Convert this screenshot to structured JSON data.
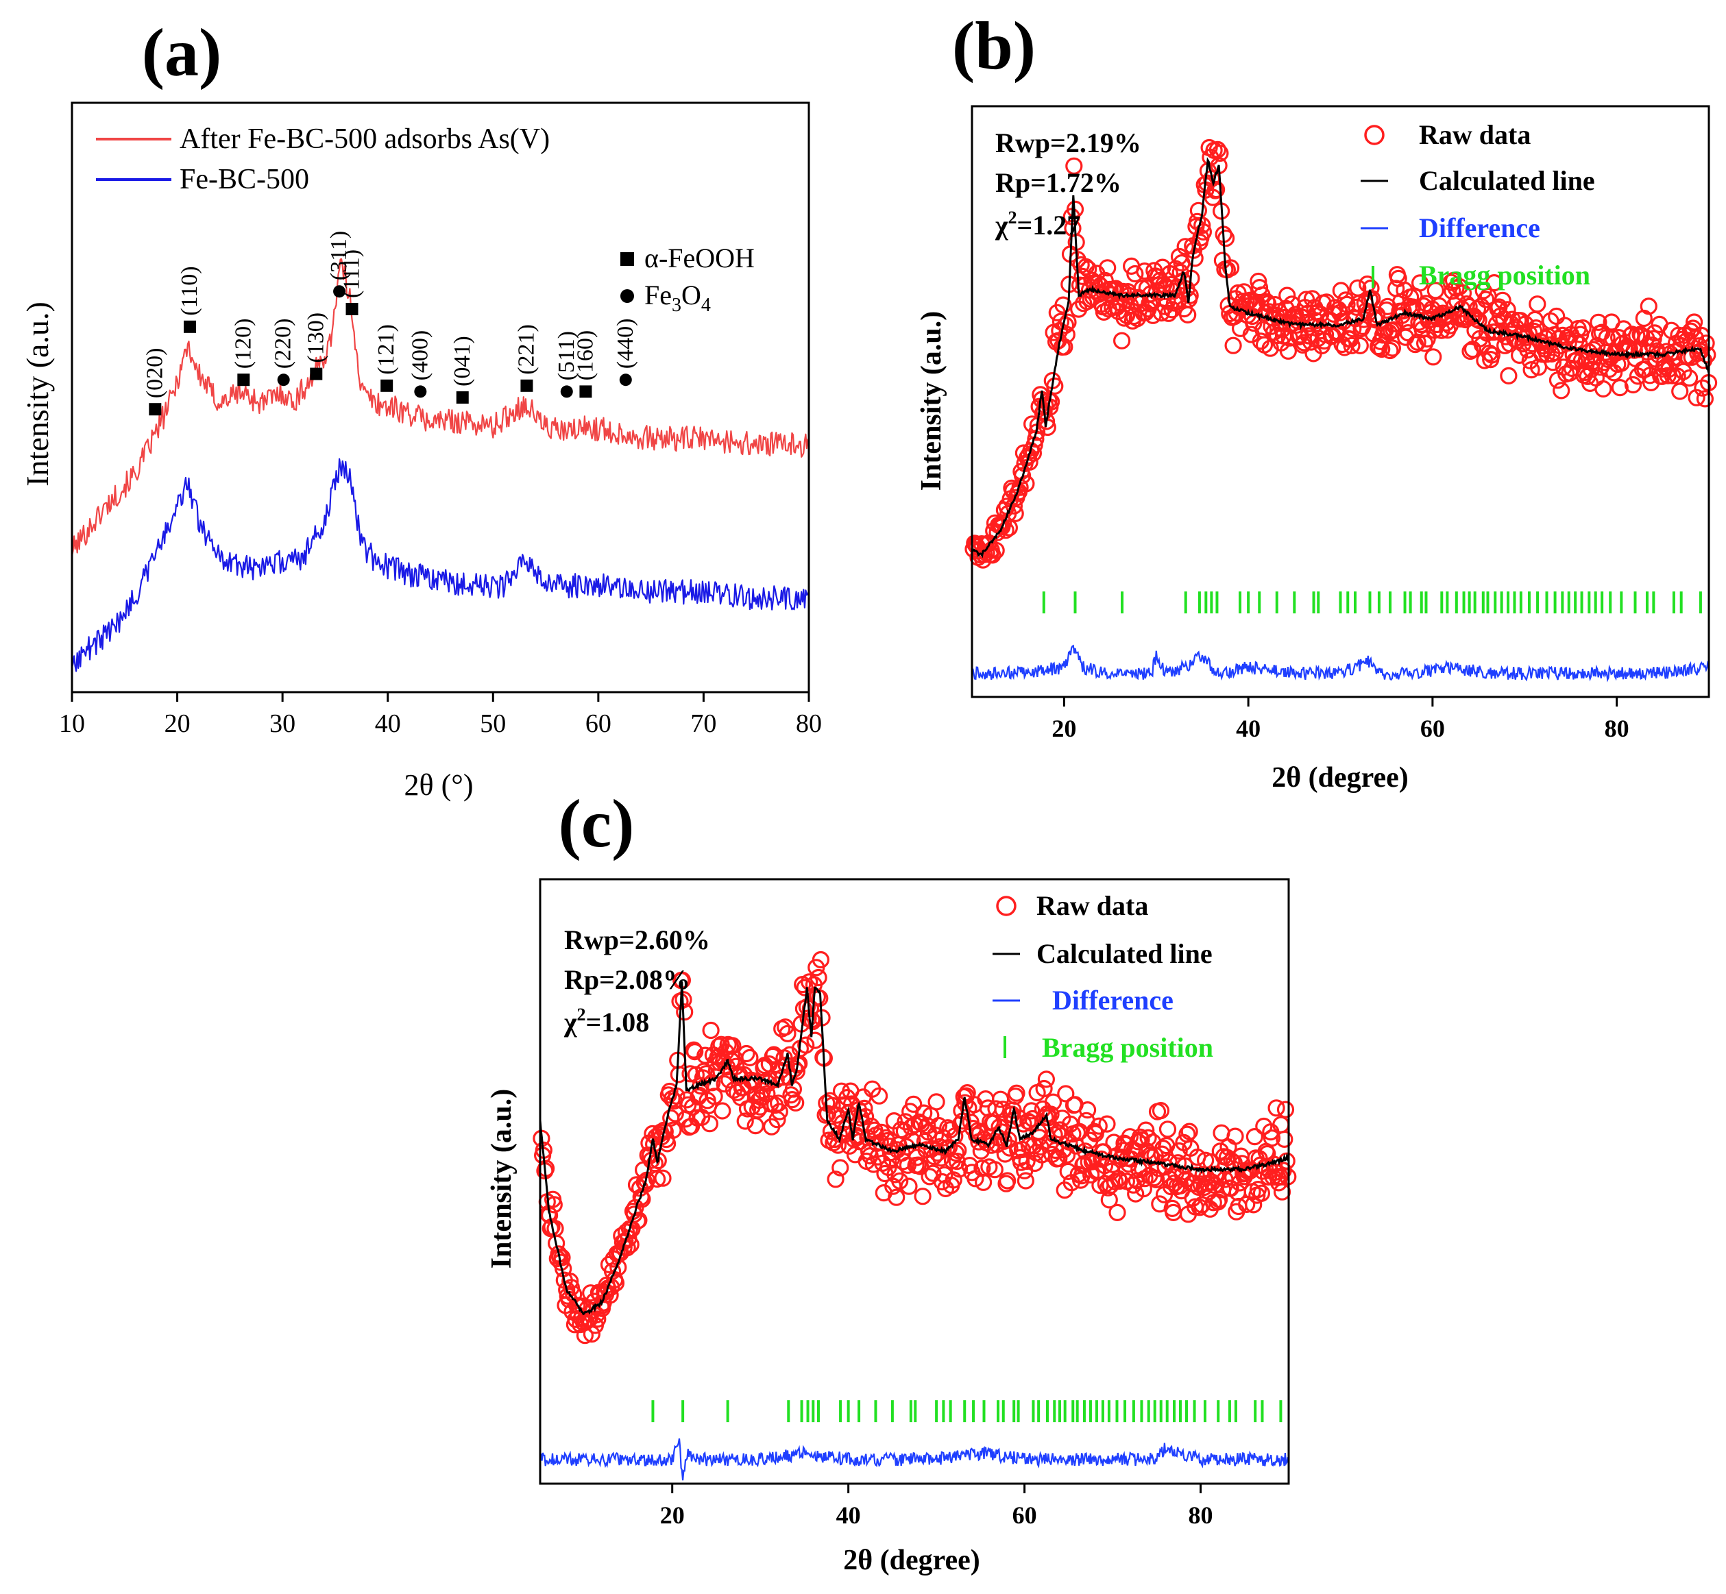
{
  "figure": {
    "panels": [
      {
        "label": "(a)"
      },
      {
        "label": "(b)"
      },
      {
        "label": "(c)"
      }
    ]
  },
  "chart_data": [
    {
      "panel": "(a)",
      "type": "line",
      "title": "",
      "xlabel": "2θ (°)",
      "ylabel": "Intensity (a.u.)",
      "xlim": [
        10,
        80
      ],
      "ylim": [
        0,
        100
      ],
      "xticks": [
        10,
        20,
        30,
        40,
        50,
        60,
        70,
        80
      ],
      "yticks_visible": false,
      "legend_position": "top-left",
      "series": [
        {
          "name": "After Fe-BC-500 adsorbs As(V)",
          "color": "#f04545",
          "x": [
            10,
            13,
            16,
            18,
            19.5,
            20.5,
            21,
            22,
            24,
            26,
            28,
            30,
            31,
            33,
            34.5,
            35.5,
            36.5,
            37.5,
            39,
            41,
            44,
            47,
            50,
            53,
            55,
            57,
            59,
            62,
            65,
            70,
            75,
            80
          ],
          "y": [
            24,
            31,
            37,
            44,
            50,
            56,
            59,
            54,
            49,
            51,
            49,
            51,
            49,
            54,
            59,
            73,
            66,
            51,
            49,
            48,
            46,
            46,
            45,
            49,
            45,
            44,
            45,
            44,
            43,
            43,
            42,
            42
          ]
        },
        {
          "name": "Fe-BC-500",
          "color": "#1a1ae6",
          "x": [
            10,
            12,
            14,
            16,
            18,
            19.5,
            20.5,
            21,
            22,
            24,
            27,
            30,
            32,
            34,
            35.5,
            36.5,
            37.5,
            39,
            42,
            45,
            48,
            51,
            53,
            55,
            57,
            59,
            62,
            65,
            70,
            75,
            80
          ],
          "y": [
            5,
            8,
            11,
            16,
            24,
            29,
            34,
            36,
            29,
            23,
            21,
            22,
            23,
            29,
            39,
            36,
            25,
            22,
            20,
            19,
            18,
            18,
            23,
            18,
            18,
            18,
            18,
            17,
            17,
            16,
            16
          ]
        }
      ],
      "legend_series": [
        "After Fe-BC-500 adsorbs As(V)",
        "Fe-BC-500"
      ],
      "phase_legend": [
        {
          "symbol": "square",
          "label": "α-FeOOH"
        },
        {
          "symbol": "circle",
          "label": "Fe3O4",
          "base": "Fe",
          "sub1": "3",
          "mid": "O",
          "sub2": "4"
        }
      ],
      "annotations": [
        {
          "x": 17.9,
          "y": 48,
          "symbol": "square",
          "hkl": "(020)"
        },
        {
          "x": 21.2,
          "y": 62,
          "symbol": "square",
          "hkl": "(110)"
        },
        {
          "x": 26.3,
          "y": 53,
          "symbol": "square",
          "hkl": "(120)"
        },
        {
          "x": 30.1,
          "y": 53,
          "symbol": "circle",
          "hkl": "(220)"
        },
        {
          "x": 33.2,
          "y": 54,
          "symbol": "square",
          "hkl": "(130)"
        },
        {
          "x": 35.4,
          "y": 68,
          "symbol": "circle",
          "hkl": "(311)"
        },
        {
          "x": 36.6,
          "y": 65,
          "symbol": "square",
          "hkl": "(111)"
        },
        {
          "x": 39.9,
          "y": 52,
          "symbol": "square",
          "hkl": "(121)"
        },
        {
          "x": 43.1,
          "y": 51,
          "symbol": "circle",
          "hkl": "(400)"
        },
        {
          "x": 47.1,
          "y": 50,
          "symbol": "square",
          "hkl": "(041)"
        },
        {
          "x": 53.2,
          "y": 52,
          "symbol": "square",
          "hkl": "(221)"
        },
        {
          "x": 57.0,
          "y": 51,
          "symbol": "circle",
          "hkl": "(511)"
        },
        {
          "x": 58.8,
          "y": 51,
          "symbol": "square",
          "hkl": "(160)"
        },
        {
          "x": 62.6,
          "y": 53,
          "symbol": "circle",
          "hkl": "(440)"
        }
      ]
    },
    {
      "panel": "(b)",
      "type": "scatter",
      "title": "",
      "xlabel": "2θ (degree)",
      "ylabel": "Intensity (a.u.)",
      "xlim": [
        10,
        90
      ],
      "ylim": [
        0,
        100
      ],
      "xticks": [
        20,
        40,
        60,
        80
      ],
      "yticks_visible": false,
      "legend_position": "top-right",
      "stats": [
        {
          "name": "Rwp",
          "text": "Rwp=2.19%"
        },
        {
          "name": "Rp",
          "text": "Rp=1.72%"
        },
        {
          "name": "chi2",
          "text": "χ2=1.27",
          "base": "χ",
          "sup": "2",
          "rest": "=1.27"
        }
      ],
      "legend": [
        {
          "label": "Raw data",
          "marker": "open-circle",
          "color": "#ff1f1f",
          "text_color": "#000000"
        },
        {
          "label": "Calculated line",
          "marker": "line",
          "color": "#000000",
          "text_color": "#000000"
        },
        {
          "label": "Difference",
          "marker": "line",
          "color": "#1f3fff",
          "text_color": "#1f3fff"
        },
        {
          "label": "Bragg position",
          "marker": "tick",
          "color": "#22e022",
          "text_color": "#22e022"
        }
      ],
      "calculated_line": {
        "x": [
          10,
          11,
          13,
          15,
          17,
          17.6,
          18,
          19.5,
          20.5,
          21,
          21.6,
          23,
          26,
          29,
          32,
          33,
          33.5,
          34,
          35,
          35.6,
          36.2,
          36.8,
          37.5,
          38,
          40,
          45,
          50,
          52.5,
          53.2,
          54,
          57,
          60,
          63,
          66,
          70,
          75,
          80,
          85,
          89,
          90
        ],
        "y": [
          25,
          24,
          28,
          35,
          45,
          52,
          46,
          60,
          67,
          85,
          68,
          69,
          68,
          68,
          68,
          72,
          67,
          75,
          82,
          91,
          87,
          90,
          73,
          66,
          65,
          63,
          63,
          64,
          69,
          63,
          65,
          64,
          66,
          62,
          61,
          59,
          58,
          58,
          59,
          55
        ]
      },
      "raw_data_scatter_band": 6,
      "bragg_positions": [
        17.8,
        21.2,
        26.3,
        33.2,
        34.7,
        35.4,
        36.0,
        36.6,
        39.1,
        40.0,
        41.2,
        43.1,
        45.0,
        47.1,
        47.6,
        50.0,
        50.8,
        51.6,
        53.2,
        54.2,
        55.4,
        57.0,
        57.6,
        58.8,
        59.3,
        61.0,
        61.6,
        62.6,
        63.4,
        64.0,
        64.6,
        65.5,
        66.0,
        66.8,
        67.5,
        68.2,
        68.9,
        69.6,
        70.5,
        71.4,
        72.4,
        73.3,
        74.1,
        74.8,
        75.5,
        76.2,
        77.0,
        77.7,
        78.4,
        79.3,
        80.5,
        82.0,
        83.3,
        84.0,
        86.2,
        87.0,
        89.1
      ],
      "bragg_level": 16,
      "difference": {
        "x": [
          10,
          15,
          20,
          21,
          22,
          25,
          29.5,
          30,
          31,
          33,
          35,
          36,
          37,
          40,
          45,
          50,
          53,
          54,
          58,
          62,
          66,
          70,
          75,
          80,
          85,
          90
        ],
        "y": [
          4,
          4,
          5,
          8,
          5,
          4,
          4,
          7,
          4,
          5,
          7,
          5,
          4,
          5,
          4,
          4,
          6,
          4,
          4,
          5,
          4,
          4,
          4,
          4,
          4,
          5
        ]
      }
    },
    {
      "panel": "(c)",
      "type": "scatter",
      "title": "",
      "xlabel": "2θ (degree)",
      "ylabel": "Intensity (a.u.)",
      "xlim": [
        5,
        90
      ],
      "ylim": [
        0,
        100
      ],
      "xticks": [
        20,
        40,
        60,
        80
      ],
      "yticks_visible": false,
      "legend_position": "top-right",
      "stats": [
        {
          "name": "Rwp",
          "text": "Rwp=2.60%"
        },
        {
          "name": "Rp",
          "text": "Rp=2.08%"
        },
        {
          "name": "chi2",
          "text": "χ2=1.08",
          "base": "χ",
          "sup": "2",
          "rest": "=1.08"
        }
      ],
      "legend": [
        {
          "label": "Raw data",
          "marker": "open-circle",
          "color": "#ff1f1f",
          "text_color": "#000000"
        },
        {
          "label": "Calculated line",
          "marker": "line",
          "color": "#000000",
          "text_color": "#000000"
        },
        {
          "label": "Difference",
          "marker": "line",
          "color": "#1f3fff",
          "text_color": "#1f3fff"
        },
        {
          "label": "Bragg position",
          "marker": "tick",
          "color": "#22e022",
          "text_color": "#22e022"
        }
      ],
      "calculated_line": {
        "x": [
          5,
          6,
          8,
          10,
          12,
          14,
          16,
          17,
          17.8,
          18.3,
          19.5,
          20.5,
          21.1,
          21.6,
          23,
          25,
          26.3,
          27,
          30,
          32,
          33.1,
          33.6,
          34.2,
          35.3,
          35.8,
          36.2,
          36.8,
          37.6,
          39,
          40,
          40.5,
          41.2,
          42,
          45,
          48,
          51,
          52.5,
          53.2,
          54,
          56,
          57,
          58,
          58.8,
          59.5,
          61,
          62.5,
          63,
          65,
          67,
          70,
          75,
          80,
          85,
          88,
          90
        ],
        "y": [
          60,
          45,
          32,
          28,
          30,
          37,
          46,
          50,
          57,
          53,
          61,
          66,
          83,
          65,
          66,
          67,
          70,
          67,
          67,
          66,
          71,
          66,
          69,
          82,
          74,
          82,
          81,
          60,
          57,
          62,
          57,
          63,
          57,
          55,
          56,
          55,
          57,
          64,
          57,
          56,
          59,
          56,
          62,
          57,
          58,
          61,
          57,
          56,
          55,
          54,
          53,
          52,
          52,
          53,
          54
        ]
      },
      "raw_data_scatter_band": 7,
      "bragg_positions": [
        17.8,
        21.2,
        26.3,
        33.2,
        34.7,
        35.4,
        36.0,
        36.6,
        39.1,
        40.0,
        41.2,
        43.1,
        45.0,
        47.1,
        47.6,
        50.0,
        50.8,
        51.6,
        53.2,
        54.2,
        55.4,
        57.0,
        57.6,
        58.8,
        59.3,
        61.0,
        61.6,
        62.6,
        63.4,
        64.0,
        64.6,
        65.5,
        66.0,
        66.8,
        67.5,
        68.2,
        68.9,
        69.6,
        70.5,
        71.4,
        72.4,
        73.3,
        74.1,
        74.8,
        75.5,
        76.2,
        77.0,
        77.7,
        78.4,
        79.3,
        80.5,
        82.0,
        83.3,
        84.0,
        86.2,
        87.0,
        89.1
      ],
      "bragg_level": 12,
      "difference": {
        "x": [
          5,
          10,
          15,
          20,
          20.8,
          21.2,
          21.6,
          22.5,
          25,
          30,
          35,
          40,
          45,
          50,
          55,
          60,
          65,
          70,
          75,
          76,
          80,
          85,
          90
        ],
        "y": [
          4,
          4,
          4,
          4,
          7,
          0,
          5,
          4,
          4,
          4,
          5,
          4,
          4,
          4,
          5,
          4,
          4,
          4,
          4,
          6,
          4,
          4,
          4
        ]
      }
    }
  ]
}
